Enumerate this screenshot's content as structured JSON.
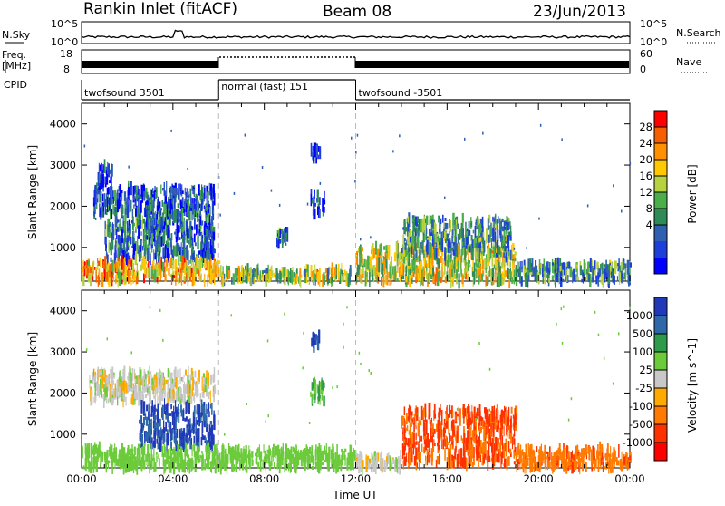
{
  "header": {
    "title": "Rankin Inlet (fitACF)",
    "beam": "Beam 08",
    "date": "23/Jun/2013"
  },
  "strip": {
    "nsky_label": "N.Sky",
    "nsearch_label": "N.Search",
    "freq_label_1": "Freq.",
    "freq_label_2": "[MHz]",
    "nave_label": "Nave",
    "cpid_label": "CPID",
    "left_scale_top": "10^5",
    "left_scale_bottom": "10^0",
    "right_scale_top": "10^5",
    "right_scale_bottom": "10^0",
    "freq_ticks": [
      "18",
      "8"
    ],
    "nave_ticks": [
      "60",
      "0"
    ]
  },
  "cpid_segments": [
    {
      "label": "twofsound 3501",
      "start_hour": 0,
      "end_hour": 6
    },
    {
      "label": "normal (fast) 151",
      "start_hour": 6,
      "end_hour": 12
    },
    {
      "label": "twofsound -3501",
      "start_hour": 12,
      "end_hour": 24
    }
  ],
  "chart_data": [
    {
      "type": "heatmap",
      "name": "power-panel",
      "ylabel": "Slant Range [km]",
      "xlabel": "Time UT",
      "xlim_hours": [
        0,
        24
      ],
      "ylim_km": [
        180,
        4500
      ],
      "x_ticks": [
        "00:00",
        "04:00",
        "08:00",
        "12:00",
        "16:00",
        "20:00",
        "00:00"
      ],
      "y_ticks": [
        "1000",
        "2000",
        "3000",
        "4000"
      ],
      "colorbar_label": "Power [dB]",
      "colorbar_ticks": [
        "28",
        "24",
        "20",
        "16",
        "12",
        "8",
        "4"
      ],
      "colorbar_colors": [
        "#ff0000",
        "#f55f00",
        "#ff9000",
        "#ffc800",
        "#b6d23f",
        "#4cae48",
        "#2e8b57",
        "#2f5fb0",
        "#1b3fd8",
        "#0000ff"
      ],
      "regions": [
        {
          "t0": 0.5,
          "t1": 5.8,
          "r0": 1800,
          "r1": 2450,
          "value": 8
        },
        {
          "t0": 0.7,
          "t1": 1.3,
          "r0": 2500,
          "r1": 3000,
          "value": 5
        },
        {
          "t0": 2.8,
          "t1": 5.8,
          "r0": 700,
          "r1": 1800,
          "value": 8
        },
        {
          "t0": 1.0,
          "t1": 3.5,
          "r0": 700,
          "r1": 1700,
          "value": 10
        },
        {
          "t0": 0.0,
          "t1": 6.0,
          "r0": 180,
          "r1": 650,
          "value": 22
        },
        {
          "t0": 6.0,
          "t1": 11.8,
          "r0": 180,
          "r1": 450,
          "value": 16
        },
        {
          "t0": 10.0,
          "t1": 10.4,
          "r0": 3150,
          "r1": 3400,
          "value": 6
        },
        {
          "t0": 10.0,
          "t1": 10.6,
          "r0": 1800,
          "r1": 2300,
          "value": 6
        },
        {
          "t0": 8.5,
          "t1": 9.0,
          "r0": 1100,
          "r1": 1400,
          "value": 10
        },
        {
          "t0": 12.0,
          "t1": 19.0,
          "r0": 180,
          "r1": 1000,
          "value": 18
        },
        {
          "t0": 14.0,
          "t1": 18.8,
          "r0": 800,
          "r1": 1700,
          "value": 12
        },
        {
          "t0": 19.0,
          "t1": 24.0,
          "r0": 180,
          "r1": 600,
          "value": 12
        }
      ]
    },
    {
      "type": "heatmap",
      "name": "velocity-panel",
      "ylabel": "Slant Range [km]",
      "xlabel": "Time UT",
      "xlim_hours": [
        0,
        24
      ],
      "ylim_km": [
        180,
        4500
      ],
      "x_ticks": [
        "00:00",
        "04:00",
        "08:00",
        "12:00",
        "16:00",
        "20:00",
        "00:00"
      ],
      "y_ticks": [
        "1000",
        "2000",
        "3000",
        "4000"
      ],
      "colorbar_label": "Velocity [m s^-1]",
      "colorbar_ticks": [
        "1000",
        "500",
        "100",
        "25",
        "-25",
        "-100",
        "-500",
        "-1000"
      ],
      "colorbar_colors": [
        "#1f39b8",
        "#2e68a8",
        "#2f9a4a",
        "#6ccb3b",
        "#c8c8c8",
        "#ffaa00",
        "#ff7a00",
        "#ff3000",
        "#ff0000"
      ],
      "regions": [
        {
          "t0": 0.3,
          "t1": 5.8,
          "r0": 1800,
          "r1": 2500,
          "value": 0
        },
        {
          "t0": 2.5,
          "t1": 5.8,
          "r0": 700,
          "r1": 1700,
          "value": 800
        },
        {
          "t0": 0.0,
          "t1": 12.0,
          "r0": 180,
          "r1": 650,
          "value": 80
        },
        {
          "t0": 10.0,
          "t1": 10.4,
          "r0": 3150,
          "r1": 3400,
          "value": 800
        },
        {
          "t0": 10.0,
          "t1": 10.6,
          "r0": 1800,
          "r1": 2300,
          "value": 150
        },
        {
          "t0": 12.0,
          "t1": 14.0,
          "r0": 180,
          "r1": 450,
          "value": 0
        },
        {
          "t0": 14.0,
          "t1": 19.0,
          "r0": 250,
          "r1": 1600,
          "value": -400
        },
        {
          "t0": 19.0,
          "t1": 24.0,
          "r0": 180,
          "r1": 650,
          "value": -300
        }
      ]
    }
  ]
}
